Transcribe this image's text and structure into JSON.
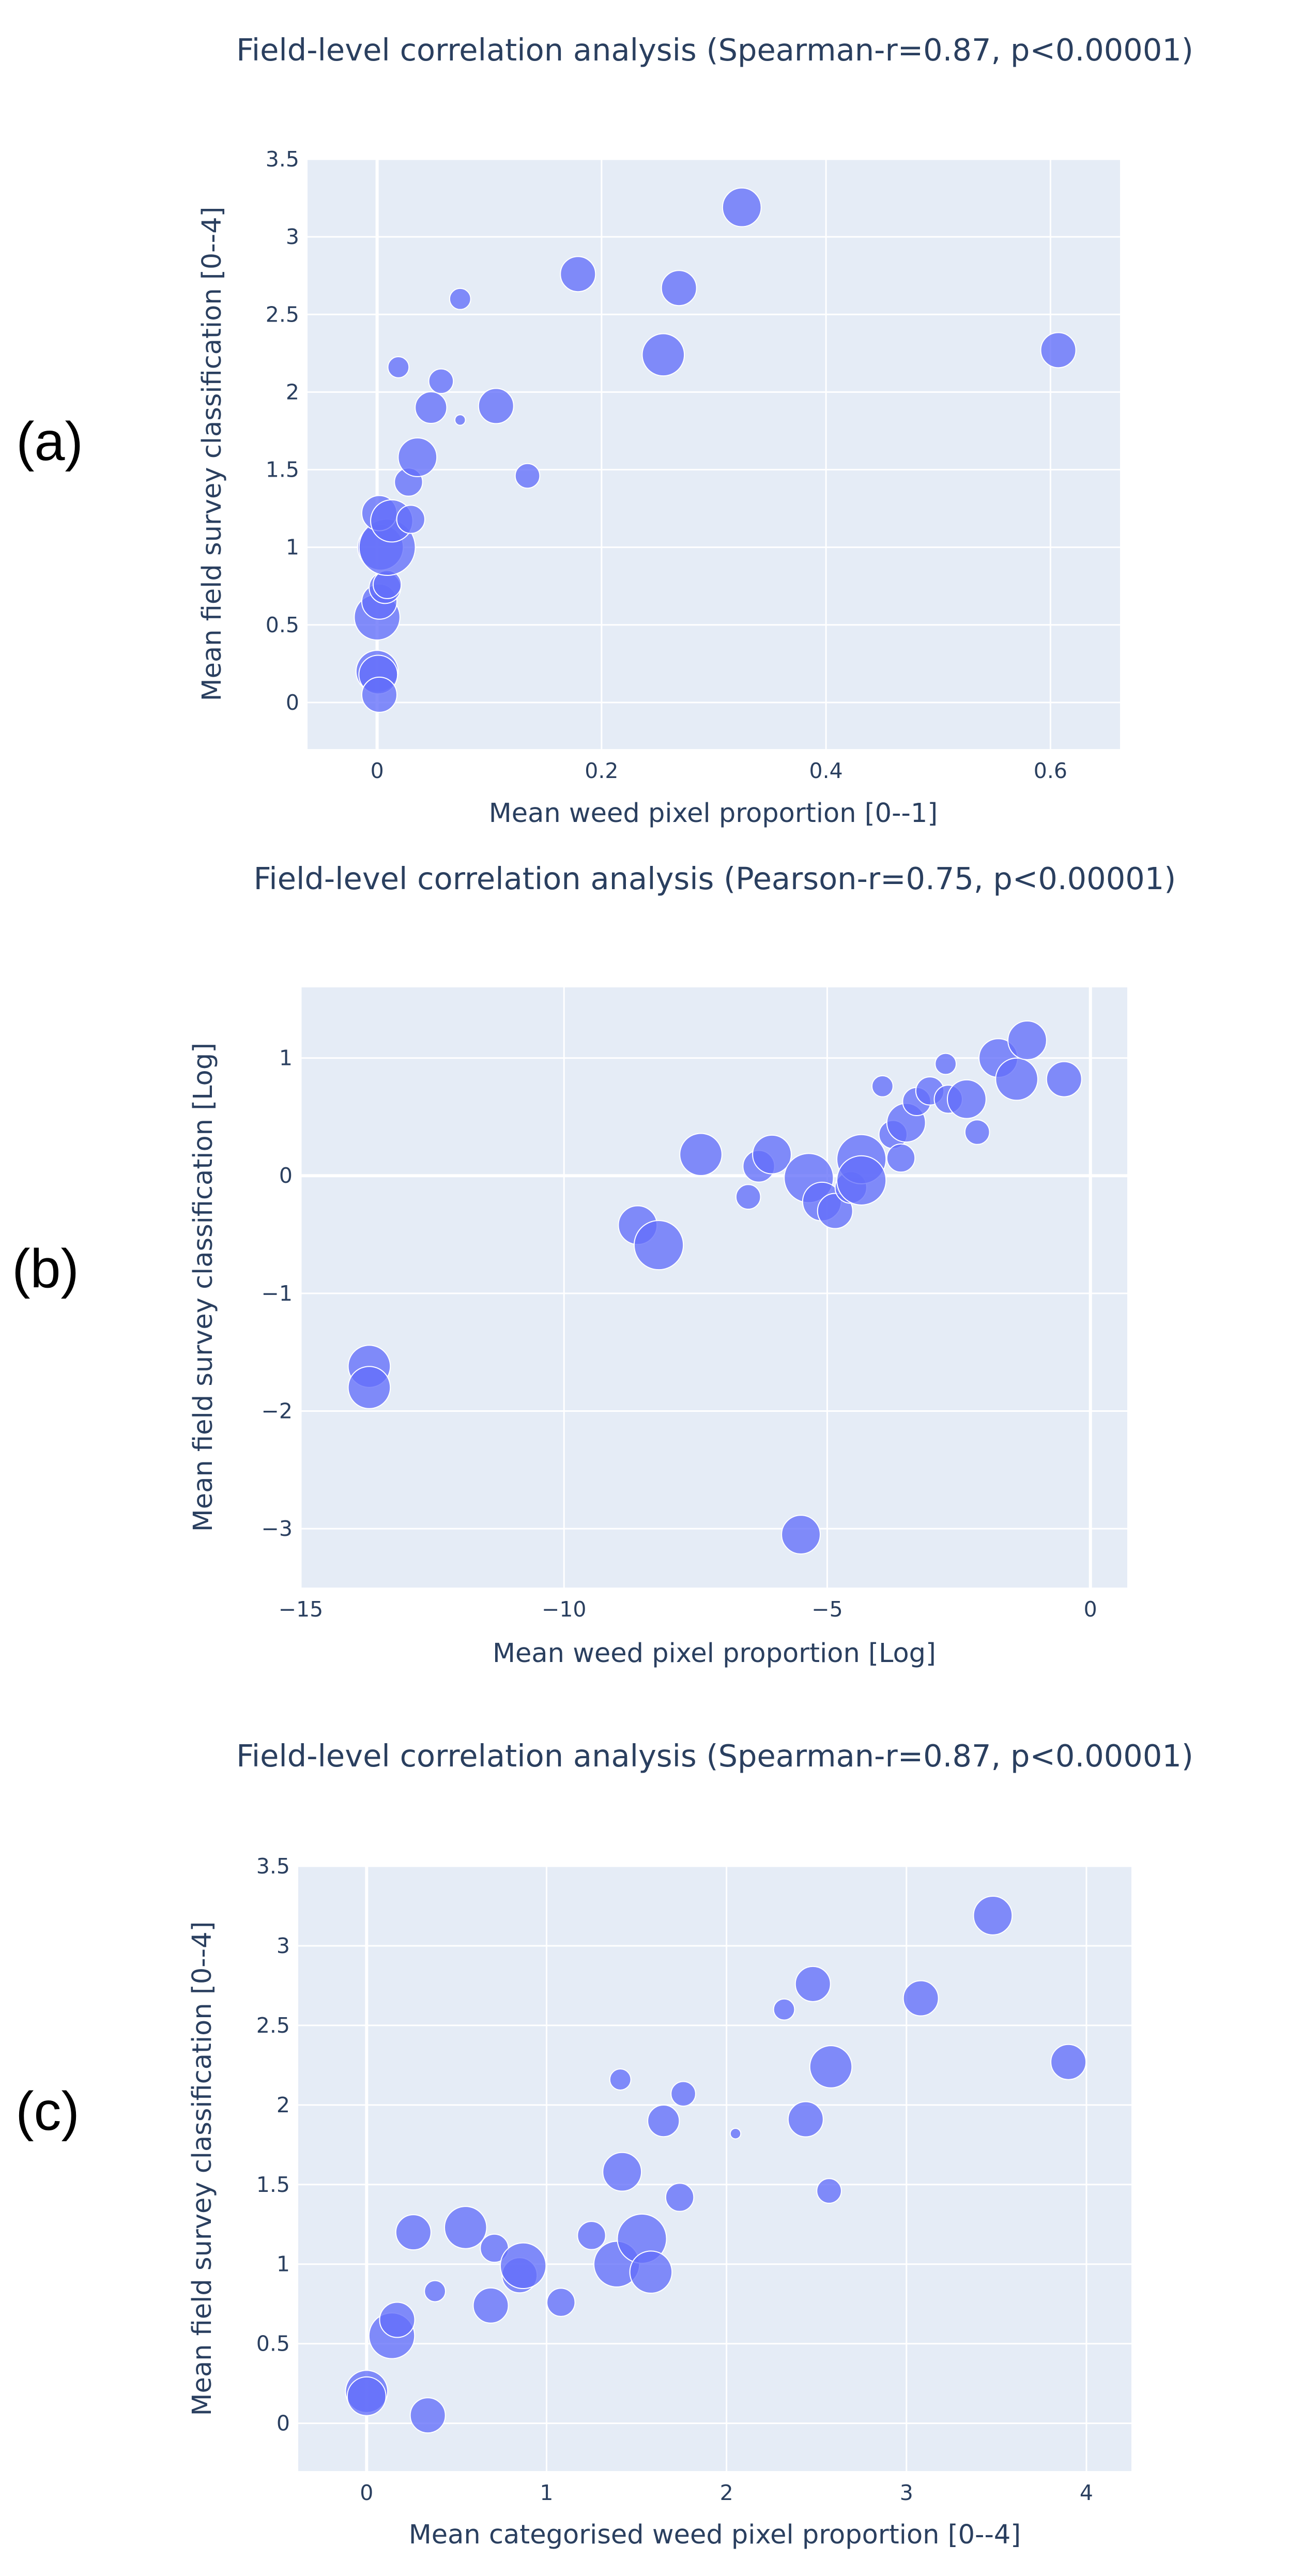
{
  "colors": {
    "plot_bg": "#e5ecf6",
    "marker": "#636efa",
    "text": "#2a3f5f",
    "grid": "#ffffff"
  },
  "chart_data": [
    {
      "panel_label": "(a)",
      "type": "scatter",
      "title": "Field-level correlation analysis (Spearman-r=0.87, p<0.00001)",
      "xlabel": "Mean weed pixel proportion [0--1]",
      "ylabel": "Mean field survey classification [0--4]",
      "xlim": [
        -0.062,
        0.662
      ],
      "ylim": [
        -0.3,
        3.5
      ],
      "xticks": [
        0,
        0.2,
        0.4,
        0.6
      ],
      "xtick_labels": [
        "0",
        "0.2",
        "0.4",
        "0.6"
      ],
      "yticks": [
        0,
        0.5,
        1,
        1.5,
        2,
        2.5,
        3,
        3.5
      ],
      "ytick_labels": [
        "0",
        "0.5",
        "1",
        "1.5",
        "2",
        "2.5",
        "3",
        "3.5"
      ],
      "x_zeroline": true,
      "y_zeroline": false,
      "points": [
        {
          "x": 0.0,
          "y": 0.2,
          "size": 12
        },
        {
          "x": 0.001,
          "y": 0.18,
          "size": 11
        },
        {
          "x": 0.002,
          "y": 0.05,
          "size": 10
        },
        {
          "x": 0.0,
          "y": 0.55,
          "size": 13
        },
        {
          "x": 0.002,
          "y": 0.65,
          "size": 10
        },
        {
          "x": 0.007,
          "y": 0.74,
          "size": 9
        },
        {
          "x": 0.009,
          "y": 0.76,
          "size": 8
        },
        {
          "x": 0.003,
          "y": 1.0,
          "size": 13
        },
        {
          "x": 0.009,
          "y": 1.0,
          "size": 16
        },
        {
          "x": 0.002,
          "y": 1.22,
          "size": 10
        },
        {
          "x": 0.013,
          "y": 1.17,
          "size": 12
        },
        {
          "x": 0.03,
          "y": 1.18,
          "size": 8
        },
        {
          "x": 0.028,
          "y": 1.42,
          "size": 8
        },
        {
          "x": 0.036,
          "y": 1.58,
          "size": 11
        },
        {
          "x": 0.048,
          "y": 1.9,
          "size": 9
        },
        {
          "x": 0.057,
          "y": 2.07,
          "size": 7
        },
        {
          "x": 0.019,
          "y": 2.16,
          "size": 6
        },
        {
          "x": 0.074,
          "y": 1.82,
          "size": 3
        },
        {
          "x": 0.074,
          "y": 2.6,
          "size": 6
        },
        {
          "x": 0.106,
          "y": 1.91,
          "size": 10
        },
        {
          "x": 0.134,
          "y": 1.46,
          "size": 7
        },
        {
          "x": 0.179,
          "y": 2.76,
          "size": 10
        },
        {
          "x": 0.255,
          "y": 2.24,
          "size": 12
        },
        {
          "x": 0.269,
          "y": 2.67,
          "size": 10
        },
        {
          "x": 0.325,
          "y": 3.19,
          "size": 11
        },
        {
          "x": 0.607,
          "y": 2.27,
          "size": 10
        }
      ]
    },
    {
      "panel_label": "(b)",
      "type": "scatter",
      "title": "Field-level correlation analysis (Pearson-r=0.75, p<0.00001)",
      "xlabel": "Mean weed pixel proportion [Log]",
      "ylabel": "Mean field survey classification [Log]",
      "xlim": [
        -15.0,
        0.7
      ],
      "ylim": [
        -3.5,
        1.6
      ],
      "xticks": [
        -15,
        -10,
        -5,
        0
      ],
      "xtick_labels": [
        "−15",
        "−10",
        "−5",
        "0"
      ],
      "yticks": [
        -3,
        -2,
        -1,
        0,
        1
      ],
      "ytick_labels": [
        "−3",
        "−2",
        "−1",
        "0",
        "1"
      ],
      "x_zeroline": true,
      "y_zeroline": true,
      "points": [
        {
          "x": -13.7,
          "y": -1.62,
          "size": 12
        },
        {
          "x": -13.7,
          "y": -1.8,
          "size": 12
        },
        {
          "x": -5.5,
          "y": -3.05,
          "size": 11
        },
        {
          "x": -8.6,
          "y": -0.42,
          "size": 11
        },
        {
          "x": -8.2,
          "y": -0.59,
          "size": 14
        },
        {
          "x": -7.4,
          "y": 0.18,
          "size": 12
        },
        {
          "x": -6.5,
          "y": -0.18,
          "size": 7
        },
        {
          "x": -6.3,
          "y": 0.08,
          "size": 9
        },
        {
          "x": -6.05,
          "y": 0.18,
          "size": 11
        },
        {
          "x": -5.35,
          "y": -0.02,
          "size": 14
        },
        {
          "x": -5.1,
          "y": -0.22,
          "size": 11
        },
        {
          "x": -4.85,
          "y": -0.3,
          "size": 10
        },
        {
          "x": -4.55,
          "y": -0.1,
          "size": 9
        },
        {
          "x": -4.35,
          "y": 0.14,
          "size": 14
        },
        {
          "x": -4.35,
          "y": -0.04,
          "size": 14
        },
        {
          "x": -3.95,
          "y": 0.76,
          "size": 6
        },
        {
          "x": -3.75,
          "y": 0.35,
          "size": 8
        },
        {
          "x": -3.6,
          "y": 0.15,
          "size": 8
        },
        {
          "x": -3.5,
          "y": 0.45,
          "size": 11
        },
        {
          "x": -3.3,
          "y": 0.63,
          "size": 8
        },
        {
          "x": -3.05,
          "y": 0.72,
          "size": 8
        },
        {
          "x": -2.75,
          "y": 0.95,
          "size": 6
        },
        {
          "x": -2.7,
          "y": 0.65,
          "size": 8
        },
        {
          "x": -2.35,
          "y": 0.65,
          "size": 11
        },
        {
          "x": -2.15,
          "y": 0.37,
          "size": 7
        },
        {
          "x": -1.75,
          "y": 1.0,
          "size": 11
        },
        {
          "x": -1.4,
          "y": 0.82,
          "size": 12
        },
        {
          "x": -1.2,
          "y": 1.15,
          "size": 11
        },
        {
          "x": -0.5,
          "y": 0.82,
          "size": 10
        }
      ]
    },
    {
      "panel_label": "(c)",
      "type": "scatter",
      "title": "Field-level correlation analysis (Spearman-r=0.87, p<0.00001)",
      "xlabel": "Mean categorised weed pixel proportion [0--4]",
      "ylabel": "Mean field survey classification [0--4]",
      "xlim": [
        -0.38,
        4.25
      ],
      "ylim": [
        -0.3,
        3.5
      ],
      "xticks": [
        0,
        1,
        2,
        3,
        4
      ],
      "xtick_labels": [
        "0",
        "1",
        "2",
        "3",
        "4"
      ],
      "yticks": [
        0,
        0.5,
        1,
        1.5,
        2,
        2.5,
        3,
        3.5
      ],
      "ytick_labels": [
        "0",
        "0.5",
        "1",
        "1.5",
        "2",
        "2.5",
        "3",
        "3.5"
      ],
      "x_zeroline": true,
      "y_zeroline": false,
      "points": [
        {
          "x": 0.0,
          "y": 0.2,
          "size": 12
        },
        {
          "x": 0.0,
          "y": 0.17,
          "size": 11
        },
        {
          "x": 0.34,
          "y": 0.05,
          "size": 10
        },
        {
          "x": 0.14,
          "y": 0.55,
          "size": 13
        },
        {
          "x": 0.17,
          "y": 0.65,
          "size": 10
        },
        {
          "x": 0.38,
          "y": 0.83,
          "size": 6
        },
        {
          "x": 0.26,
          "y": 1.2,
          "size": 10
        },
        {
          "x": 0.55,
          "y": 1.23,
          "size": 12
        },
        {
          "x": 0.71,
          "y": 1.1,
          "size": 8
        },
        {
          "x": 0.69,
          "y": 0.74,
          "size": 10
        },
        {
          "x": 0.85,
          "y": 0.93,
          "size": 10
        },
        {
          "x": 0.87,
          "y": 0.99,
          "size": 13
        },
        {
          "x": 1.08,
          "y": 0.76,
          "size": 8
        },
        {
          "x": 1.25,
          "y": 1.18,
          "size": 8
        },
        {
          "x": 1.39,
          "y": 1.0,
          "size": 13
        },
        {
          "x": 1.53,
          "y": 1.16,
          "size": 14
        },
        {
          "x": 1.58,
          "y": 0.95,
          "size": 12
        },
        {
          "x": 1.42,
          "y": 1.58,
          "size": 11
        },
        {
          "x": 1.41,
          "y": 2.16,
          "size": 6
        },
        {
          "x": 1.65,
          "y": 1.9,
          "size": 9
        },
        {
          "x": 1.76,
          "y": 2.07,
          "size": 7
        },
        {
          "x": 1.74,
          "y": 1.42,
          "size": 8
        },
        {
          "x": 2.05,
          "y": 1.82,
          "size": 3
        },
        {
          "x": 2.32,
          "y": 2.6,
          "size": 6
        },
        {
          "x": 2.44,
          "y": 1.91,
          "size": 10
        },
        {
          "x": 2.57,
          "y": 1.46,
          "size": 7
        },
        {
          "x": 2.48,
          "y": 2.76,
          "size": 10
        },
        {
          "x": 2.58,
          "y": 2.24,
          "size": 12
        },
        {
          "x": 3.08,
          "y": 2.67,
          "size": 10
        },
        {
          "x": 3.48,
          "y": 3.19,
          "size": 11
        },
        {
          "x": 3.9,
          "y": 2.27,
          "size": 10
        }
      ]
    }
  ]
}
